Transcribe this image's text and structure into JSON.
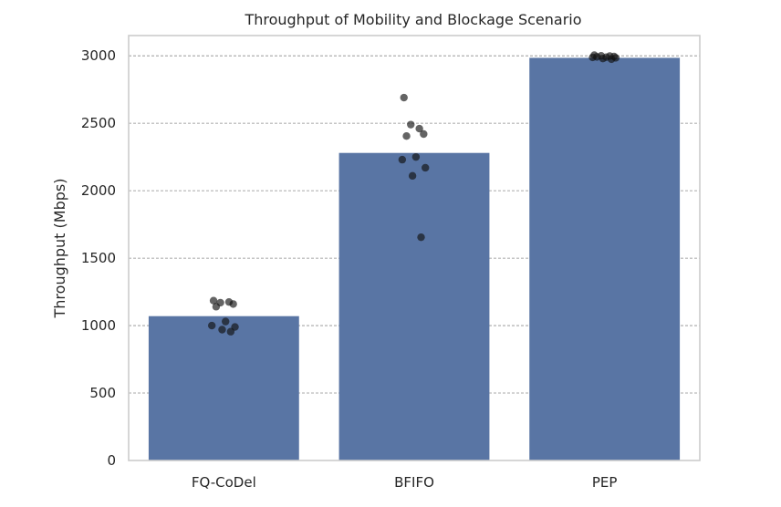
{
  "chart_data": {
    "type": "bar",
    "title": "Throughput of Mobility and Blockage Scenario",
    "xlabel": "",
    "ylabel": "Throughput (Mbps)",
    "ylim": [
      0,
      3150
    ],
    "yticks": [
      0,
      500,
      1000,
      1500,
      2000,
      2500,
      3000
    ],
    "grid": "y-dashed",
    "bar_color": "#5975a4",
    "point_color": "#111111",
    "categories": [
      "FQ-CoDel",
      "BFIFO",
      "PEP"
    ],
    "values": [
      1070,
      2280,
      2985
    ],
    "points": [
      [
        1185,
        1170,
        1175,
        1160,
        1140,
        1030,
        1000,
        990,
        970,
        955
      ],
      [
        2690,
        2490,
        2460,
        2420,
        2405,
        2250,
        2230,
        2170,
        2110,
        1655
      ],
      [
        3005,
        3000,
        2998,
        2995,
        2992,
        2990,
        2988,
        2985,
        2980,
        2975
      ]
    ]
  }
}
